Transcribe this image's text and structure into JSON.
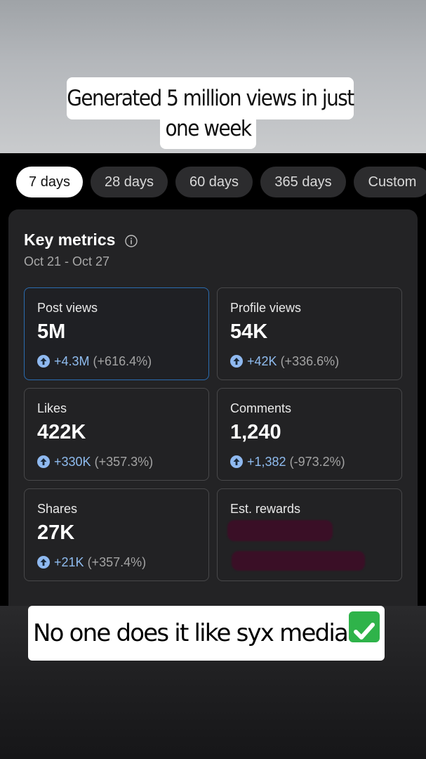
{
  "captions": {
    "top_line1": "Generated 5 million views in just",
    "top_line2": "one week",
    "bottom": "No one does it like syx media"
  },
  "tabs": [
    {
      "label": "7 days",
      "active": true
    },
    {
      "label": "28 days",
      "active": false
    },
    {
      "label": "60 days",
      "active": false
    },
    {
      "label": "365 days",
      "active": false
    },
    {
      "label": "Custom",
      "active": false
    }
  ],
  "key_metrics": {
    "title": "Key metrics",
    "date_range": "Oct 21 - Oct 27"
  },
  "metrics": [
    {
      "label": "Post views",
      "value": "5M",
      "change": "+4.3M",
      "pct": "(+616.4%)"
    },
    {
      "label": "Profile views",
      "value": "54K",
      "change": "+42K",
      "pct": "(+336.6%)"
    },
    {
      "label": "Likes",
      "value": "422K",
      "change": "+330K",
      "pct": "(+357.3%)"
    },
    {
      "label": "Comments",
      "value": "1,240",
      "change": "+1,382",
      "pct": "(-973.2%)"
    },
    {
      "label": "Shares",
      "value": "27K",
      "change": "+21K",
      "pct": "(+357.4%)"
    },
    {
      "label": "Est. rewards"
    }
  ],
  "colors": {
    "accent": "#8fbcf0",
    "selected_border": "#2b6cb0",
    "redaction": "#3a0f26",
    "check": "#2fb34a"
  },
  "icons": {
    "info": "info-icon",
    "up": "arrow-up-circle-icon",
    "check": "check-mark-button-icon"
  }
}
